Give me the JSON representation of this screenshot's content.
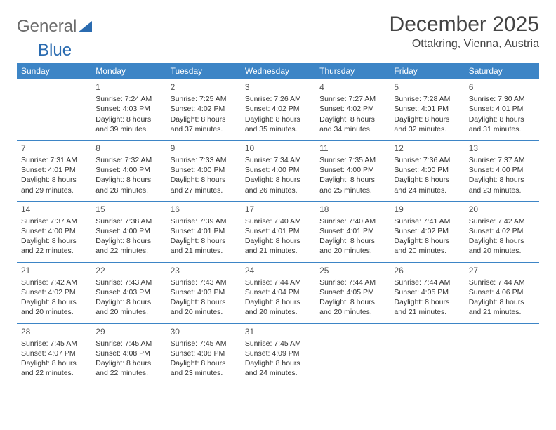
{
  "brand": {
    "part1": "General",
    "part2": "Blue"
  },
  "title": "December 2025",
  "location": "Ottakring, Vienna, Austria",
  "colors": {
    "header_bg": "#3d85c6",
    "header_text": "#ffffff",
    "border": "#3d85c6",
    "body_text": "#333333",
    "title_text": "#444444",
    "logo_gray": "#6b6b6b",
    "logo_blue": "#2a6bb0",
    "background": "#ffffff"
  },
  "typography": {
    "month_title_fontsize": 30,
    "location_fontsize": 16,
    "header_fontsize": 12,
    "daynum_fontsize": 12,
    "cell_fontsize": 10.5
  },
  "day_headers": [
    "Sunday",
    "Monday",
    "Tuesday",
    "Wednesday",
    "Thursday",
    "Friday",
    "Saturday"
  ],
  "weeks": [
    [
      null,
      {
        "n": "1",
        "sr": "7:24 AM",
        "ss": "4:03 PM",
        "dl": "8 hours and 39 minutes."
      },
      {
        "n": "2",
        "sr": "7:25 AM",
        "ss": "4:02 PM",
        "dl": "8 hours and 37 minutes."
      },
      {
        "n": "3",
        "sr": "7:26 AM",
        "ss": "4:02 PM",
        "dl": "8 hours and 35 minutes."
      },
      {
        "n": "4",
        "sr": "7:27 AM",
        "ss": "4:02 PM",
        "dl": "8 hours and 34 minutes."
      },
      {
        "n": "5",
        "sr": "7:28 AM",
        "ss": "4:01 PM",
        "dl": "8 hours and 32 minutes."
      },
      {
        "n": "6",
        "sr": "7:30 AM",
        "ss": "4:01 PM",
        "dl": "8 hours and 31 minutes."
      }
    ],
    [
      {
        "n": "7",
        "sr": "7:31 AM",
        "ss": "4:01 PM",
        "dl": "8 hours and 29 minutes."
      },
      {
        "n": "8",
        "sr": "7:32 AM",
        "ss": "4:00 PM",
        "dl": "8 hours and 28 minutes."
      },
      {
        "n": "9",
        "sr": "7:33 AM",
        "ss": "4:00 PM",
        "dl": "8 hours and 27 minutes."
      },
      {
        "n": "10",
        "sr": "7:34 AM",
        "ss": "4:00 PM",
        "dl": "8 hours and 26 minutes."
      },
      {
        "n": "11",
        "sr": "7:35 AM",
        "ss": "4:00 PM",
        "dl": "8 hours and 25 minutes."
      },
      {
        "n": "12",
        "sr": "7:36 AM",
        "ss": "4:00 PM",
        "dl": "8 hours and 24 minutes."
      },
      {
        "n": "13",
        "sr": "7:37 AM",
        "ss": "4:00 PM",
        "dl": "8 hours and 23 minutes."
      }
    ],
    [
      {
        "n": "14",
        "sr": "7:37 AM",
        "ss": "4:00 PM",
        "dl": "8 hours and 22 minutes."
      },
      {
        "n": "15",
        "sr": "7:38 AM",
        "ss": "4:00 PM",
        "dl": "8 hours and 22 minutes."
      },
      {
        "n": "16",
        "sr": "7:39 AM",
        "ss": "4:01 PM",
        "dl": "8 hours and 21 minutes."
      },
      {
        "n": "17",
        "sr": "7:40 AM",
        "ss": "4:01 PM",
        "dl": "8 hours and 21 minutes."
      },
      {
        "n": "18",
        "sr": "7:40 AM",
        "ss": "4:01 PM",
        "dl": "8 hours and 20 minutes."
      },
      {
        "n": "19",
        "sr": "7:41 AM",
        "ss": "4:02 PM",
        "dl": "8 hours and 20 minutes."
      },
      {
        "n": "20",
        "sr": "7:42 AM",
        "ss": "4:02 PM",
        "dl": "8 hours and 20 minutes."
      }
    ],
    [
      {
        "n": "21",
        "sr": "7:42 AM",
        "ss": "4:02 PM",
        "dl": "8 hours and 20 minutes."
      },
      {
        "n": "22",
        "sr": "7:43 AM",
        "ss": "4:03 PM",
        "dl": "8 hours and 20 minutes."
      },
      {
        "n": "23",
        "sr": "7:43 AM",
        "ss": "4:03 PM",
        "dl": "8 hours and 20 minutes."
      },
      {
        "n": "24",
        "sr": "7:44 AM",
        "ss": "4:04 PM",
        "dl": "8 hours and 20 minutes."
      },
      {
        "n": "25",
        "sr": "7:44 AM",
        "ss": "4:05 PM",
        "dl": "8 hours and 20 minutes."
      },
      {
        "n": "26",
        "sr": "7:44 AM",
        "ss": "4:05 PM",
        "dl": "8 hours and 21 minutes."
      },
      {
        "n": "27",
        "sr": "7:44 AM",
        "ss": "4:06 PM",
        "dl": "8 hours and 21 minutes."
      }
    ],
    [
      {
        "n": "28",
        "sr": "7:45 AM",
        "ss": "4:07 PM",
        "dl": "8 hours and 22 minutes."
      },
      {
        "n": "29",
        "sr": "7:45 AM",
        "ss": "4:08 PM",
        "dl": "8 hours and 22 minutes."
      },
      {
        "n": "30",
        "sr": "7:45 AM",
        "ss": "4:08 PM",
        "dl": "8 hours and 23 minutes."
      },
      {
        "n": "31",
        "sr": "7:45 AM",
        "ss": "4:09 PM",
        "dl": "8 hours and 24 minutes."
      },
      null,
      null,
      null
    ]
  ],
  "labels": {
    "sunrise": "Sunrise:",
    "sunset": "Sunset:",
    "daylight": "Daylight:"
  }
}
